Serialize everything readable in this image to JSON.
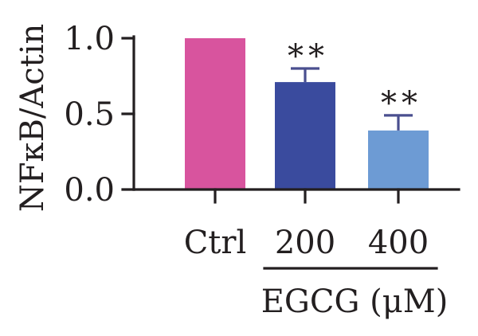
{
  "chart_data": {
    "type": "bar",
    "ylabel": "NFκB/Actin",
    "ylim": [
      0,
      1.0
    ],
    "yticks": [
      "0.0",
      "0.5",
      "1.0"
    ],
    "ytick_values": [
      0,
      0.5,
      1.0
    ],
    "categories": [
      "Ctrl",
      "200",
      "400"
    ],
    "values": [
      1.0,
      0.71,
      0.39
    ],
    "errors": [
      0,
      0.09,
      0.1
    ],
    "significance": [
      "",
      "**",
      "**"
    ],
    "bar_colors": [
      "#d8549e",
      "#3a4b9e",
      "#6d9bd4"
    ],
    "group_label": "EGCG (μM)",
    "group_categories": [
      "200",
      "400"
    ],
    "grid": false,
    "legend": "none"
  }
}
